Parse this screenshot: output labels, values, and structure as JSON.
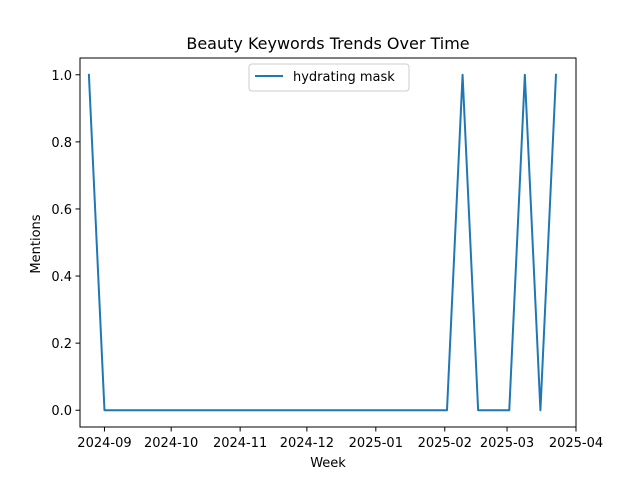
{
  "chart_data": {
    "type": "line",
    "title": "Beauty Keywords Trends Over Time",
    "xlabel": "Week",
    "ylabel": "Mentions",
    "x_tick_labels": [
      "2024-09",
      "2024-10",
      "2024-11",
      "2024-12",
      "2025-01",
      "2025-02",
      "2025-03",
      "2025-04"
    ],
    "y_tick_labels": [
      "0.0",
      "0.2",
      "0.4",
      "0.6",
      "0.8",
      "1.0"
    ],
    "xlim": [
      "2024-08-21",
      "2025-04-01"
    ],
    "ylim": [
      -0.05,
      1.05
    ],
    "grid": false,
    "legend_position": "top-center",
    "series": [
      {
        "name": "hydrating mask",
        "color": "#1f77b4",
        "x": [
          "2024-08-25",
          "2024-09-01",
          "2025-02-02",
          "2025-02-09",
          "2025-02-16",
          "2025-03-02",
          "2025-03-09",
          "2025-03-16",
          "2025-03-23"
        ],
        "y": [
          1,
          0,
          0,
          1,
          0,
          0,
          1,
          0,
          1
        ]
      }
    ]
  }
}
